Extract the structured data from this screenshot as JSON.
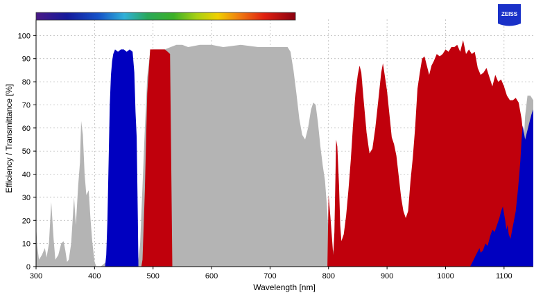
{
  "chart_data": {
    "type": "area",
    "xlabel": "Wavelength [nm]",
    "ylabel": "Efficiency / Transmittance [%]",
    "xlim": [
      300,
      1150
    ],
    "ylim": [
      0,
      107
    ],
    "x_ticks": [
      300,
      400,
      500,
      600,
      700,
      800,
      900,
      1000,
      1100
    ],
    "y_ticks": [
      0,
      10,
      20,
      30,
      40,
      50,
      60,
      70,
      80,
      90,
      100
    ],
    "grid": true,
    "colorbar": {
      "range_nm": [
        300,
        745
      ]
    },
    "series": [
      {
        "color": "#b4b4b4",
        "points": [
          [
            300,
            18
          ],
          [
            302,
            9
          ],
          [
            305,
            3
          ],
          [
            310,
            5
          ],
          [
            315,
            8
          ],
          [
            318,
            4
          ],
          [
            322,
            10
          ],
          [
            326,
            28
          ],
          [
            330,
            12
          ],
          [
            333,
            3
          ],
          [
            338,
            5
          ],
          [
            343,
            10
          ],
          [
            347,
            11
          ],
          [
            350,
            7
          ],
          [
            353,
            2
          ],
          [
            356,
            3
          ],
          [
            360,
            10
          ],
          [
            365,
            30
          ],
          [
            368,
            18
          ],
          [
            372,
            35
          ],
          [
            375,
            45
          ],
          [
            377,
            63
          ],
          [
            380,
            57
          ],
          [
            383,
            40
          ],
          [
            386,
            31
          ],
          [
            390,
            33
          ],
          [
            393,
            21
          ],
          [
            396,
            11
          ],
          [
            400,
            2
          ],
          [
            403,
            0
          ],
          [
            410,
            0
          ],
          [
            415,
            1
          ],
          [
            420,
            2
          ],
          [
            465,
            2
          ],
          [
            470,
            2
          ],
          [
            474,
            1
          ],
          [
            478,
            10
          ],
          [
            482,
            35
          ],
          [
            486,
            60
          ],
          [
            490,
            82
          ],
          [
            495,
            93
          ],
          [
            500,
            94
          ],
          [
            505,
            94
          ],
          [
            510,
            94
          ],
          [
            520,
            94
          ],
          [
            530,
            95
          ],
          [
            540,
            96
          ],
          [
            550,
            96
          ],
          [
            560,
            95
          ],
          [
            580,
            96
          ],
          [
            600,
            96
          ],
          [
            620,
            95
          ],
          [
            650,
            96
          ],
          [
            680,
            95
          ],
          [
            700,
            95
          ],
          [
            720,
            95
          ],
          [
            730,
            95
          ],
          [
            735,
            93
          ],
          [
            740,
            85
          ],
          [
            745,
            75
          ],
          [
            750,
            64
          ],
          [
            755,
            57
          ],
          [
            760,
            55
          ],
          [
            765,
            60
          ],
          [
            770,
            68
          ],
          [
            774,
            71
          ],
          [
            778,
            70
          ],
          [
            782,
            62
          ],
          [
            786,
            52
          ],
          [
            790,
            44
          ],
          [
            794,
            37
          ],
          [
            797,
            27
          ],
          [
            800,
            15
          ],
          [
            803,
            10
          ],
          [
            806,
            7
          ],
          [
            808,
            7
          ],
          [
            812,
            0
          ],
          [
            1120,
            0
          ],
          [
            1124,
            4
          ],
          [
            1128,
            20
          ],
          [
            1132,
            46
          ],
          [
            1136,
            65
          ],
          [
            1140,
            74
          ],
          [
            1145,
            74
          ],
          [
            1150,
            72
          ]
        ]
      },
      {
        "color": "#c0000c",
        "points": [
          [
            470,
            0
          ],
          [
            480,
            0
          ],
          [
            482,
            3
          ],
          [
            486,
            33
          ],
          [
            490,
            75
          ],
          [
            495,
            94
          ],
          [
            505,
            94
          ],
          [
            515,
            94
          ],
          [
            520,
            94
          ],
          [
            525,
            93
          ],
          [
            529,
            92
          ],
          [
            531,
            45
          ],
          [
            533,
            0
          ],
          [
            798,
            0
          ],
          [
            800,
            31
          ],
          [
            803,
            22
          ],
          [
            806,
            12
          ],
          [
            808,
            5
          ],
          [
            810,
            15
          ],
          [
            812,
            42
          ],
          [
            813,
            55
          ],
          [
            815,
            52
          ],
          [
            818,
            35
          ],
          [
            820,
            18
          ],
          [
            822,
            11
          ],
          [
            826,
            14
          ],
          [
            830,
            22
          ],
          [
            834,
            33
          ],
          [
            838,
            46
          ],
          [
            842,
            62
          ],
          [
            846,
            75
          ],
          [
            850,
            83
          ],
          [
            853,
            87
          ],
          [
            856,
            84
          ],
          [
            860,
            72
          ],
          [
            865,
            58
          ],
          [
            870,
            49
          ],
          [
            875,
            51
          ],
          [
            880,
            60
          ],
          [
            885,
            72
          ],
          [
            890,
            84
          ],
          [
            893,
            88
          ],
          [
            896,
            83
          ],
          [
            900,
            76
          ],
          [
            904,
            66
          ],
          [
            908,
            56
          ],
          [
            912,
            53
          ],
          [
            916,
            48
          ],
          [
            920,
            39
          ],
          [
            924,
            30
          ],
          [
            928,
            24
          ],
          [
            932,
            21
          ],
          [
            936,
            24
          ],
          [
            940,
            37
          ],
          [
            944,
            47
          ],
          [
            948,
            60
          ],
          [
            952,
            77
          ],
          [
            956,
            84
          ],
          [
            960,
            90
          ],
          [
            964,
            91
          ],
          [
            968,
            87
          ],
          [
            972,
            83
          ],
          [
            976,
            87
          ],
          [
            980,
            89
          ],
          [
            985,
            92
          ],
          [
            990,
            91
          ],
          [
            995,
            92
          ],
          [
            1000,
            94
          ],
          [
            1005,
            93
          ],
          [
            1010,
            95
          ],
          [
            1015,
            95
          ],
          [
            1020,
            96
          ],
          [
            1025,
            93
          ],
          [
            1030,
            98
          ],
          [
            1035,
            92
          ],
          [
            1040,
            94
          ],
          [
            1045,
            92
          ],
          [
            1050,
            93
          ],
          [
            1055,
            86
          ],
          [
            1060,
            83
          ],
          [
            1065,
            84
          ],
          [
            1070,
            86
          ],
          [
            1075,
            82
          ],
          [
            1080,
            78
          ],
          [
            1085,
            83
          ],
          [
            1090,
            80
          ],
          [
            1095,
            81
          ],
          [
            1100,
            78
          ],
          [
            1105,
            74
          ],
          [
            1110,
            72
          ],
          [
            1115,
            72
          ],
          [
            1120,
            73
          ],
          [
            1125,
            71
          ],
          [
            1130,
            64
          ],
          [
            1135,
            52
          ],
          [
            1138,
            38
          ],
          [
            1140,
            18
          ],
          [
            1142,
            0
          ]
        ]
      },
      {
        "color": "#0000c0",
        "points": [
          [
            418,
            0
          ],
          [
            420,
            5
          ],
          [
            422,
            20
          ],
          [
            424,
            45
          ],
          [
            426,
            70
          ],
          [
            428,
            83
          ],
          [
            430,
            89
          ],
          [
            432,
            92
          ],
          [
            435,
            94
          ],
          [
            440,
            93
          ],
          [
            445,
            94
          ],
          [
            450,
            94
          ],
          [
            455,
            93
          ],
          [
            460,
            94
          ],
          [
            465,
            93
          ],
          [
            468,
            84
          ],
          [
            470,
            67
          ],
          [
            472,
            56
          ],
          [
            474,
            20
          ],
          [
            475,
            0
          ],
          [
            1042,
            0
          ],
          [
            1044,
            1
          ],
          [
            1048,
            3
          ],
          [
            1052,
            5
          ],
          [
            1056,
            7
          ],
          [
            1058,
            8
          ],
          [
            1060,
            6
          ],
          [
            1064,
            7
          ],
          [
            1068,
            10
          ],
          [
            1072,
            9
          ],
          [
            1076,
            13
          ],
          [
            1080,
            16
          ],
          [
            1084,
            15
          ],
          [
            1088,
            18
          ],
          [
            1092,
            21
          ],
          [
            1095,
            24
          ],
          [
            1098,
            26
          ],
          [
            1100,
            23
          ],
          [
            1102,
            20
          ],
          [
            1104,
            16
          ],
          [
            1106,
            18
          ],
          [
            1108,
            14
          ],
          [
            1111,
            12
          ],
          [
            1114,
            16
          ],
          [
            1117,
            20
          ],
          [
            1120,
            24
          ],
          [
            1122,
            29
          ],
          [
            1124,
            34
          ],
          [
            1126,
            40
          ],
          [
            1128,
            46
          ],
          [
            1130,
            55
          ],
          [
            1132,
            61
          ],
          [
            1134,
            58
          ],
          [
            1136,
            55
          ],
          [
            1138,
            57
          ],
          [
            1141,
            60
          ],
          [
            1144,
            63
          ],
          [
            1147,
            66
          ],
          [
            1150,
            68
          ]
        ]
      }
    ]
  },
  "logo": {
    "text": "ZEISS",
    "color": "#1a31c8"
  }
}
